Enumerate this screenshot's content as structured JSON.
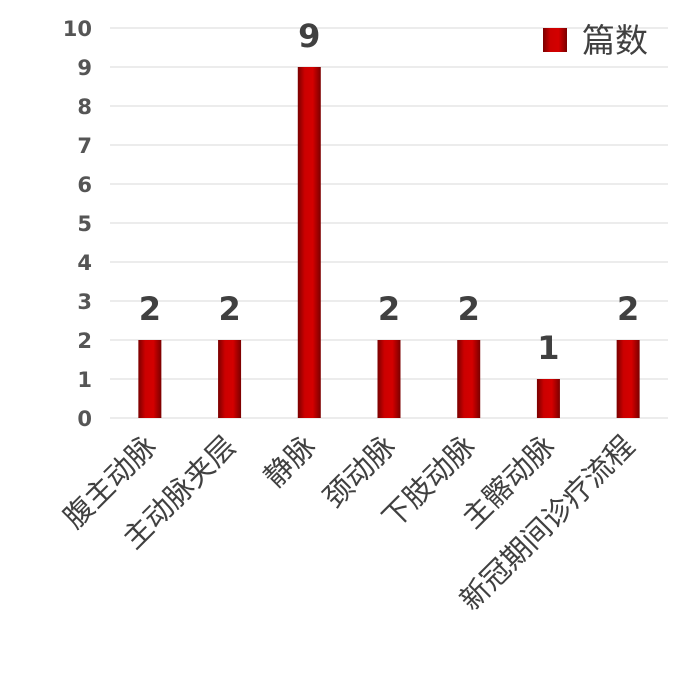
{
  "chart_data": {
    "type": "bar",
    "categories": [
      "腹主动脉",
      "主动脉夹层",
      "静脉",
      "颈动脉",
      "下肢动脉",
      "主髂动脉",
      "新冠期间诊疗流程"
    ],
    "series": [
      {
        "name": "篇数",
        "values": [
          2,
          2,
          9,
          2,
          2,
          1,
          2
        ]
      }
    ],
    "title": "",
    "xlabel": "",
    "ylabel": "",
    "ylim": [
      0,
      10
    ],
    "yticks": [
      "0",
      "1",
      "2",
      "3",
      "4",
      "5",
      "6",
      "7",
      "8",
      "9",
      "10"
    ],
    "data_labels": [
      "2",
      "2",
      "9",
      "2",
      "2",
      "1",
      "2"
    ],
    "grid": true,
    "legend_position": "top-right",
    "colors": {
      "bar_center": "#cc0000",
      "bar_edge": "#7a0000"
    }
  }
}
